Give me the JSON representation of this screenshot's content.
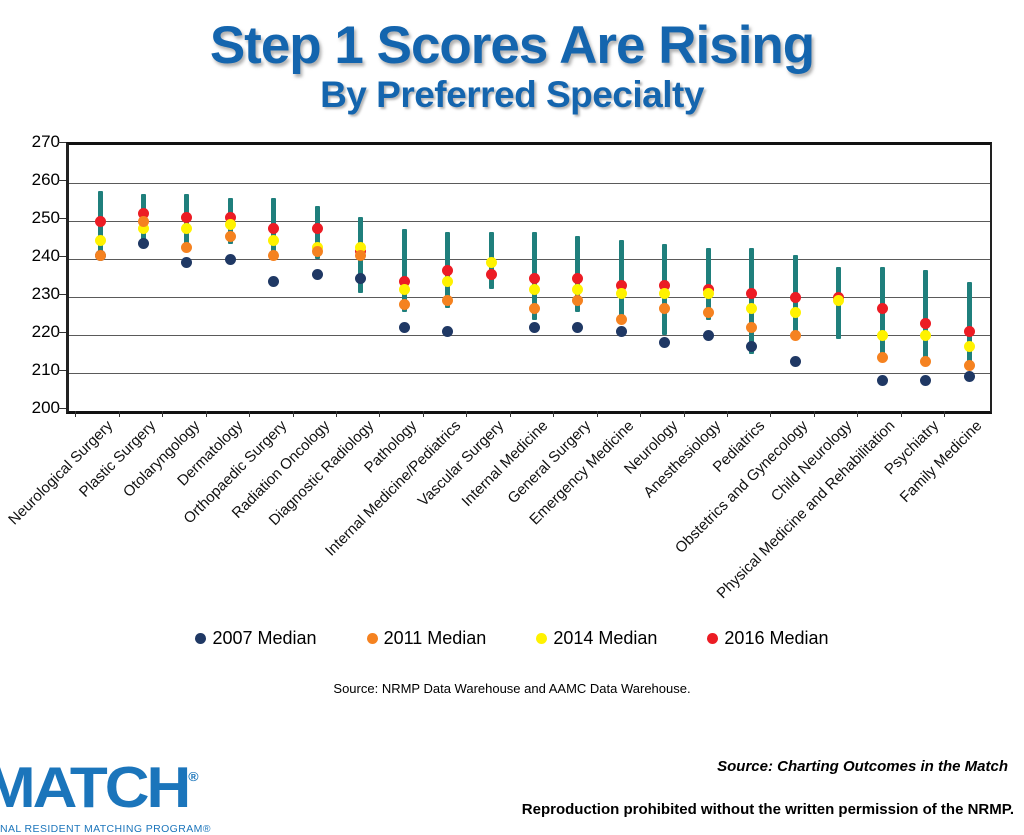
{
  "title": {
    "line1": "Step 1 Scores Are Rising",
    "line2": "By Preferred Specialty"
  },
  "source_note": "Source: NRMP Data Warehouse and AAMC Data Warehouse.",
  "footer": {
    "logo_text": "MATCH",
    "logo_reg": "®",
    "logo_sub": "NAL RESIDENT MATCHING PROGRAM®",
    "source_line": "Source: Charting Outcomes in the Match",
    "reproduction_line": "Reproduction prohibited without the written permission of the NRMP."
  },
  "chart_data": {
    "type": "scatter",
    "title": "Step 1 Scores Are Rising By Preferred Specialty",
    "ylim": [
      200,
      270
    ],
    "yticks": [
      270,
      260,
      250,
      240,
      230,
      220,
      210,
      200
    ],
    "grid": true,
    "legend_position": "bottom",
    "range_bar_color": "#1F7F7C",
    "series_meta": [
      {
        "key": "y2007",
        "name": "2007 Median",
        "color": "#1F3864"
      },
      {
        "key": "y2011",
        "name": "2011 Median",
        "color": "#F58220"
      },
      {
        "key": "y2014",
        "name": "2014 Median",
        "color": "#FFF200"
      },
      {
        "key": "y2016",
        "name": "2016 Median",
        "color": "#EC1C24"
      }
    ],
    "draw_order": [
      "y2007",
      "y2016",
      "y2014",
      "y2011"
    ],
    "specialties": [
      {
        "label": "Neurological Surgery",
        "y2007": 241,
        "y2011": 241,
        "y2014": 245,
        "y2016": 250,
        "range": [
          240,
          258
        ]
      },
      {
        "label": "Plastic Surgery",
        "y2007": 244,
        "y2011": 250,
        "y2014": 248,
        "y2016": 252,
        "range": [
          244,
          257
        ]
      },
      {
        "label": "Otolaryngology",
        "y2007": 239,
        "y2011": 243,
        "y2014": 248,
        "y2016": 251,
        "range": [
          243,
          257
        ]
      },
      {
        "label": "Dermatology",
        "y2007": 240,
        "y2011": 246,
        "y2014": 249,
        "y2016": 251,
        "range": [
          244,
          256
        ]
      },
      {
        "label": "Orthopaedic Surgery",
        "y2007": 234,
        "y2011": 241,
        "y2014": 245,
        "y2016": 248,
        "range": [
          240,
          256
        ]
      },
      {
        "label": "Radiation Oncology",
        "y2007": 236,
        "y2011": 242,
        "y2014": 243,
        "y2016": 248,
        "range": [
          240,
          254
        ]
      },
      {
        "label": "Diagnostic Radiology",
        "y2007": 235,
        "y2011": 241,
        "y2014": 243,
        "y2016": 242,
        "range": [
          231,
          251
        ]
      },
      {
        "label": "Pathology",
        "y2007": 222,
        "y2011": 228,
        "y2014": 232,
        "y2016": 234,
        "range": [
          226,
          248
        ]
      },
      {
        "label": "Internal Medicine/Pediatrics",
        "y2007": 221,
        "y2011": 229,
        "y2014": 234,
        "y2016": 237,
        "range": [
          227,
          247
        ]
      },
      {
        "label": "Vascular Surgery",
        "y2007": null,
        "y2011": null,
        "y2014": 239,
        "y2016": 236,
        "range": [
          232,
          247
        ]
      },
      {
        "label": "Internal Medicine",
        "y2007": 222,
        "y2011": 227,
        "y2014": 232,
        "y2016": 235,
        "range": [
          224,
          247
        ]
      },
      {
        "label": "General Surgery",
        "y2007": 222,
        "y2011": 229,
        "y2014": 232,
        "y2016": 235,
        "range": [
          226,
          246
        ]
      },
      {
        "label": "Emergency Medicine",
        "y2007": 221,
        "y2011": 224,
        "y2014": 231,
        "y2016": 233,
        "range": [
          223,
          245
        ]
      },
      {
        "label": "Neurology",
        "y2007": 218,
        "y2011": 227,
        "y2014": 231,
        "y2016": 233,
        "range": [
          220,
          244
        ]
      },
      {
        "label": "Anesthesiology",
        "y2007": 220,
        "y2011": 226,
        "y2014": 231,
        "y2016": 232,
        "range": [
          224,
          243
        ]
      },
      {
        "label": "Pediatrics",
        "y2007": 217,
        "y2011": 222,
        "y2014": 227,
        "y2016": 231,
        "range": [
          215,
          243
        ]
      },
      {
        "label": "Obstetrics and Gynecology",
        "y2007": 213,
        "y2011": 220,
        "y2014": 226,
        "y2016": 230,
        "range": [
          219,
          241
        ]
      },
      {
        "label": "Child Neurology",
        "y2007": null,
        "y2011": null,
        "y2014": 229,
        "y2016": 230,
        "range": [
          219,
          238
        ]
      },
      {
        "label": "Physical Medicine and Rehabilitation",
        "y2007": 208,
        "y2011": 214,
        "y2014": 220,
        "y2016": 227,
        "range": [
          214,
          238
        ]
      },
      {
        "label": "Psychiatry",
        "y2007": 208,
        "y2011": 213,
        "y2014": 220,
        "y2016": 223,
        "range": [
          214,
          237
        ]
      },
      {
        "label": "Family Medicine",
        "y2007": 209,
        "y2011": 212,
        "y2014": 217,
        "y2016": 221,
        "range": [
          211,
          234
        ]
      }
    ]
  }
}
